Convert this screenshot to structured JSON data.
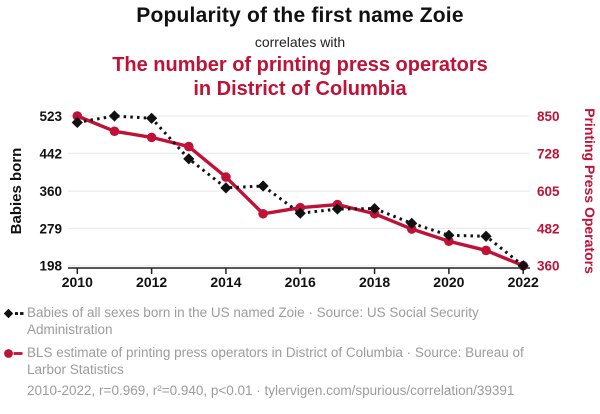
{
  "header": {
    "title": "Popularity of the first name Zoie",
    "connector": "correlates with",
    "subtitle_line1": "The number of printing press operators",
    "subtitle_line2": "in District of Columbia"
  },
  "chart_data": {
    "type": "line",
    "x": [
      2010,
      2011,
      2012,
      2013,
      2014,
      2015,
      2016,
      2017,
      2018,
      2019,
      2020,
      2021,
      2022
    ],
    "x_tick_labels": [
      "2010",
      "2012",
      "2014",
      "2016",
      "2018",
      "2020",
      "2022"
    ],
    "series": [
      {
        "name": "Babies of all sexes born in the US named Zoie",
        "axis": "left",
        "style": "dashed",
        "marker": "diamond",
        "color": "#111111",
        "values": [
          509,
          523,
          518,
          430,
          367,
          371,
          312,
          321,
          322,
          290,
          264,
          262,
          198
        ]
      },
      {
        "name": "BLS estimate of printing press operators in District of Columbia",
        "axis": "right",
        "style": "solid",
        "marker": "circle",
        "color": "#bf1236",
        "values": [
          850,
          800,
          780,
          750,
          650,
          530,
          550,
          560,
          530,
          480,
          440,
          410,
          360
        ]
      }
    ],
    "left_axis": {
      "label": "Babies born",
      "ticks": [
        523,
        442,
        360,
        279,
        198
      ],
      "min": 198,
      "max": 523,
      "color": "#111111"
    },
    "right_axis": {
      "label": "Printing Press Operators",
      "ticks": [
        850,
        728,
        605,
        482,
        360
      ],
      "min": 360,
      "max": 850,
      "color": "#bf1236"
    },
    "grid": true,
    "legend_position": "bottom"
  },
  "legend": {
    "items": [
      {
        "label": "Babies of all sexes born in the US named Zoie · Source: US Social Security Administration"
      },
      {
        "label": "BLS estimate of printing press operators in District of Columbia · Source: Bureau of Larbor Statistics"
      }
    ]
  },
  "footer": {
    "text": "2010-2022, r=0.969, r²=0.940, p<0.01 · tylervigen.com/spurious/correlation/39391"
  },
  "colors": {
    "red": "#bf1236",
    "gray_text": "#9c9c9c",
    "grid": "#e8e8e8",
    "axis": "#222222",
    "black": "#111111"
  }
}
